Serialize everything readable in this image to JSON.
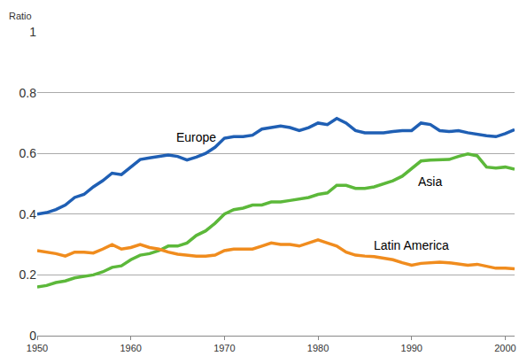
{
  "chart_data": {
    "type": "line",
    "y_label": "Ratio",
    "x": [
      1950,
      1951,
      1952,
      1953,
      1954,
      1955,
      1956,
      1957,
      1958,
      1959,
      1960,
      1961,
      1962,
      1963,
      1964,
      1965,
      1966,
      1967,
      1968,
      1969,
      1970,
      1971,
      1972,
      1973,
      1974,
      1975,
      1976,
      1977,
      1978,
      1979,
      1980,
      1981,
      1982,
      1983,
      1984,
      1985,
      1986,
      1987,
      1988,
      1989,
      1990,
      1991,
      1992,
      1993,
      1994,
      1995,
      1996,
      1997,
      1998,
      1999,
      2000,
      2001
    ],
    "series": [
      {
        "name": "Europe",
        "color": "#1f5fb4",
        "values": [
          0.4,
          0.405,
          0.415,
          0.43,
          0.455,
          0.465,
          0.49,
          0.51,
          0.535,
          0.53,
          0.555,
          0.58,
          0.585,
          0.59,
          0.595,
          0.59,
          0.578,
          0.588,
          0.6,
          0.62,
          0.65,
          0.655,
          0.655,
          0.66,
          0.68,
          0.685,
          0.69,
          0.685,
          0.675,
          0.685,
          0.7,
          0.695,
          0.715,
          0.7,
          0.675,
          0.668,
          0.668,
          0.668,
          0.672,
          0.675,
          0.675,
          0.7,
          0.695,
          0.675,
          0.672,
          0.675,
          0.668,
          0.662,
          0.658,
          0.655,
          0.665,
          0.678
        ]
      },
      {
        "name": "Asia",
        "color": "#5cb83a",
        "values": [
          0.16,
          0.165,
          0.175,
          0.18,
          0.19,
          0.195,
          0.2,
          0.21,
          0.225,
          0.23,
          0.25,
          0.265,
          0.27,
          0.28,
          0.295,
          0.295,
          0.305,
          0.33,
          0.345,
          0.37,
          0.4,
          0.415,
          0.42,
          0.43,
          0.43,
          0.44,
          0.44,
          0.445,
          0.45,
          0.455,
          0.465,
          0.47,
          0.495,
          0.495,
          0.485,
          0.485,
          0.49,
          0.5,
          0.51,
          0.525,
          0.55,
          0.575,
          0.578,
          0.578,
          0.58,
          0.59,
          0.598,
          0.592,
          0.555,
          0.552,
          0.555,
          0.548
        ]
      },
      {
        "name": "Latin America",
        "color": "#f08c1e",
        "values": [
          0.28,
          0.275,
          0.27,
          0.262,
          0.275,
          0.275,
          0.272,
          0.285,
          0.3,
          0.285,
          0.29,
          0.3,
          0.29,
          0.285,
          0.275,
          0.268,
          0.265,
          0.262,
          0.262,
          0.265,
          0.28,
          0.285,
          0.285,
          0.285,
          0.295,
          0.305,
          0.3,
          0.3,
          0.295,
          0.305,
          0.315,
          0.305,
          0.295,
          0.275,
          0.265,
          0.262,
          0.26,
          0.255,
          0.25,
          0.24,
          0.232,
          0.238,
          0.24,
          0.242,
          0.24,
          0.235,
          0.232,
          0.235,
          0.228,
          0.222,
          0.222,
          0.22
        ]
      }
    ],
    "xlim": [
      1950,
      2001
    ],
    "xticks": [
      1950,
      1960,
      1970,
      1980,
      1990,
      2000
    ],
    "ylim": [
      0,
      1
    ],
    "yticks": [
      0,
      0.2,
      0.4,
      0.6,
      0.8,
      1
    ],
    "grid": true
  }
}
